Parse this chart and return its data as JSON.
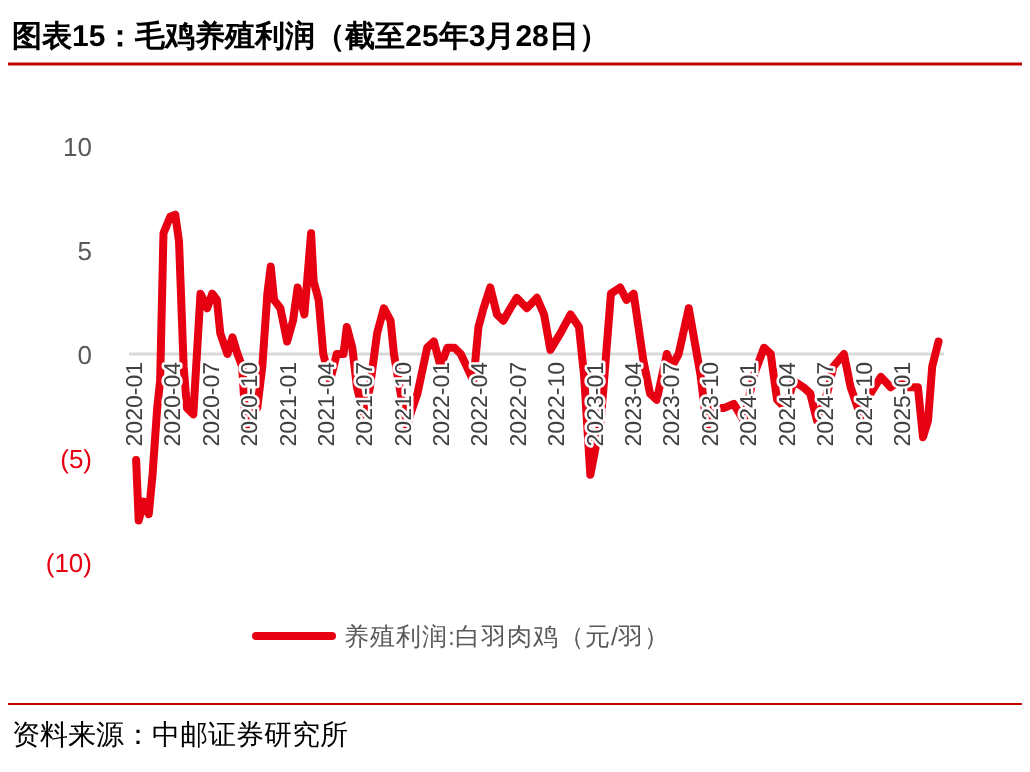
{
  "chart_data": {
    "type": "line",
    "title": "图表15：毛鸡养殖利润（截至25年3月28日）",
    "annotations": [
      "资料来源：中邮证券研究所"
    ],
    "x": [
      "2020-01-06",
      "2020-01-12",
      "2020-01-24",
      "2020-02-05",
      "2020-02-14",
      "2020-02-25",
      "2020-03-03",
      "2020-03-11",
      "2020-03-27",
      "2020-04-08",
      "2020-04-17",
      "2020-04-28",
      "2020-05-06",
      "2020-05-21",
      "2020-06-07",
      "2020-06-23",
      "2020-07-05",
      "2020-07-16",
      "2020-07-24",
      "2020-08-10",
      "2020-08-22",
      "2020-09-03",
      "2020-09-14",
      "2020-09-23",
      "2020-10-04",
      "2020-10-20",
      "2020-11-01",
      "2020-11-13",
      "2020-11-21",
      "2020-11-29",
      "2020-12-14",
      "2020-12-30",
      "2021-01-13",
      "2021-01-24",
      "2021-02-09",
      "2021-02-25",
      "2021-03-03",
      "2021-03-15",
      "2021-03-26",
      "2021-04-11",
      "2021-04-27",
      "2021-05-13",
      "2021-05-21",
      "2021-06-03",
      "2021-06-14",
      "2021-06-30",
      "2021-07-15",
      "2021-08-01",
      "2021-08-17",
      "2021-09-02",
      "2021-09-10",
      "2021-09-26",
      "2021-10-11",
      "2021-10-19",
      "2021-11-05",
      "2021-11-28",
      "2021-12-14",
      "2021-12-30",
      "2022-01-15",
      "2022-02-01",
      "2022-02-16",
      "2022-03-02",
      "2022-03-18",
      "2022-03-30",
      "2022-04-11",
      "2022-04-27",
      "2022-05-13",
      "2022-05-28",
      "2022-06-14",
      "2022-06-29",
      "2022-07-23",
      "2022-08-16",
      "2022-09-02",
      "2022-09-17",
      "2022-10-11",
      "2022-11-04",
      "2022-11-24",
      "2022-12-06",
      "2022-12-21",
      "2023-01-15",
      "2023-02-08",
      "2023-03-02",
      "2023-03-17",
      "2023-04-03",
      "2023-04-26",
      "2023-05-12",
      "2023-05-28",
      "2023-06-21",
      "2023-07-03",
      "2023-07-19",
      "2023-08-12",
      "2023-08-26",
      "2023-09-09",
      "2023-09-24",
      "2023-10-10",
      "2023-11-03",
      "2023-11-27",
      "2023-12-21",
      "2024-01-14",
      "2024-02-07",
      "2024-02-23",
      "2024-03-09",
      "2024-03-29",
      "2024-04-18",
      "2024-05-11",
      "2024-05-27",
      "2024-06-12",
      "2024-07-06",
      "2024-07-21",
      "2024-08-15",
      "2024-08-31",
      "2024-09-24",
      "2024-10-17",
      "2024-11-11",
      "2024-12-04",
      "2024-12-25",
      "2025-01-13",
      "2025-02-07",
      "2025-02-19",
      "2025-03-03",
      "2025-03-13",
      "2025-03-28"
    ],
    "series": [
      {
        "name": "养殖利润:白羽肉鸡（元/羽）",
        "color": "#e60012",
        "values": [
          -5.1,
          -8.0,
          -7.1,
          -7.7,
          -5.8,
          -2.6,
          -1.3,
          5.8,
          6.6,
          6.7,
          5.4,
          -0.6,
          -2.6,
          -2.9,
          2.9,
          2.2,
          2.9,
          2.6,
          1.0,
          0,
          0.8,
          0,
          -0.6,
          -3.5,
          -2.9,
          -2.6,
          -0.6,
          2.9,
          4.2,
          2.6,
          2.2,
          0.6,
          1.6,
          3.2,
          1.9,
          5.8,
          3.5,
          2.6,
          0,
          -1.3,
          0,
          0,
          1.3,
          0.3,
          -1.6,
          -2.9,
          -1.6,
          1.0,
          2.2,
          1.6,
          0,
          -1.9,
          -3.5,
          -2.9,
          -1.9,
          0.3,
          0.6,
          -0.6,
          0.3,
          0.3,
          0,
          -0.6,
          -1.3,
          1.3,
          2.2,
          3.2,
          1.9,
          1.6,
          2.2,
          2.7,
          2.2,
          2.7,
          1.9,
          0.2,
          1.0,
          1.9,
          1.3,
          -1.0,
          -5.8,
          -3.2,
          2.9,
          3.2,
          2.6,
          2.9,
          -0.3,
          -1.9,
          -2.2,
          0,
          -0.6,
          0,
          2.2,
          0.6,
          -1.0,
          -3.5,
          -2.6,
          -2.6,
          -2.4,
          -3.2,
          -1.0,
          0.3,
          0,
          -2.2,
          -2.6,
          -1.3,
          -1.6,
          -1.9,
          -3.2,
          -1.9,
          -0.6,
          0,
          -1.6,
          -3.0,
          -1.9,
          -1.1,
          -1.6,
          -1.3,
          -1.6,
          -1.6,
          -4.0,
          -3.2,
          -0.6,
          0.6
        ]
      }
    ],
    "xlim": [
      "2019-12-20",
      "2025-04-10"
    ],
    "xticks": [
      "2020-01",
      "2020-04",
      "2020-07",
      "2020-10",
      "2021-01",
      "2021-04",
      "2021-07",
      "2021-10",
      "2022-01",
      "2022-04",
      "2022-07",
      "2022-10",
      "2023-01",
      "2023-04",
      "2023-07",
      "2023-10",
      "2024-01",
      "2024-04",
      "2024-07",
      "2024-10",
      "2025-01"
    ],
    "ylim": [
      -10,
      10
    ],
    "yticks": [
      10,
      5,
      0,
      {
        "value": -5,
        "label": "(5)"
      },
      {
        "value": -10,
        "label": "(10)"
      }
    ],
    "legend": "bottom",
    "grid": false,
    "line_style": "solid"
  }
}
